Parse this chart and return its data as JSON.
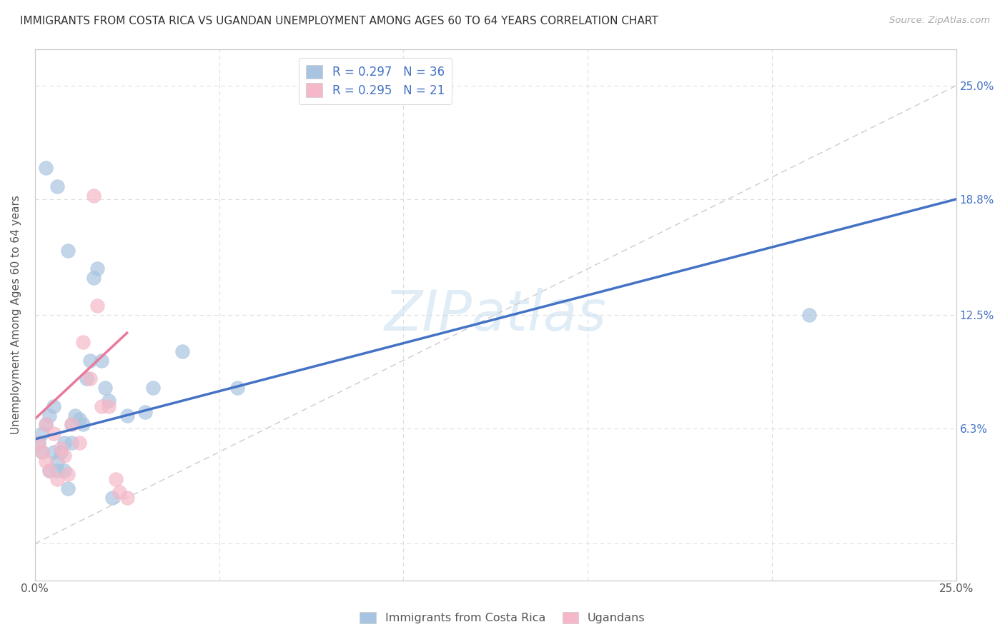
{
  "title": "IMMIGRANTS FROM COSTA RICA VS UGANDAN UNEMPLOYMENT AMONG AGES 60 TO 64 YEARS CORRELATION CHART",
  "source": "Source: ZipAtlas.com",
  "ylabel": "Unemployment Among Ages 60 to 64 years",
  "xlim": [
    0,
    0.25
  ],
  "ylim": [
    -0.02,
    0.27
  ],
  "plot_ylim": [
    -0.02,
    0.27
  ],
  "watermark": "ZIPatlas",
  "blue_R": 0.297,
  "blue_N": 36,
  "pink_R": 0.295,
  "pink_N": 21,
  "blue_color": "#a8c4e0",
  "pink_color": "#f4b8c8",
  "blue_line_color": "#4472c4",
  "pink_line_color": "#e87a9a",
  "diagonal_color": "#cccccc",
  "blue_line_x0": 0.0,
  "blue_line_y0": 0.057,
  "blue_line_x1": 0.25,
  "blue_line_y1": 0.188,
  "pink_line_x0": 0.0,
  "pink_line_y0": 0.068,
  "pink_line_x1": 0.025,
  "pink_line_y1": 0.115,
  "blue_scatter_x": [
    0.001,
    0.002,
    0.002,
    0.003,
    0.004,
    0.004,
    0.005,
    0.005,
    0.006,
    0.006,
    0.007,
    0.008,
    0.008,
    0.009,
    0.01,
    0.01,
    0.011,
    0.012,
    0.013,
    0.014,
    0.015,
    0.016,
    0.017,
    0.018,
    0.019,
    0.02,
    0.021,
    0.025,
    0.03,
    0.032,
    0.04,
    0.055,
    0.21,
    0.003,
    0.006,
    0.009
  ],
  "blue_scatter_y": [
    0.055,
    0.06,
    0.05,
    0.065,
    0.07,
    0.04,
    0.075,
    0.05,
    0.04,
    0.045,
    0.05,
    0.055,
    0.04,
    0.03,
    0.065,
    0.055,
    0.07,
    0.068,
    0.065,
    0.09,
    0.1,
    0.145,
    0.15,
    0.1,
    0.085,
    0.078,
    0.025,
    0.07,
    0.072,
    0.085,
    0.105,
    0.085,
    0.125,
    0.205,
    0.195,
    0.16
  ],
  "pink_scatter_x": [
    0.001,
    0.002,
    0.003,
    0.003,
    0.004,
    0.005,
    0.006,
    0.007,
    0.008,
    0.009,
    0.01,
    0.012,
    0.013,
    0.015,
    0.016,
    0.017,
    0.018,
    0.02,
    0.022,
    0.023,
    0.025
  ],
  "pink_scatter_y": [
    0.055,
    0.05,
    0.045,
    0.065,
    0.04,
    0.06,
    0.035,
    0.052,
    0.048,
    0.038,
    0.065,
    0.055,
    0.11,
    0.09,
    0.19,
    0.13,
    0.075,
    0.075,
    0.035,
    0.028,
    0.025
  ]
}
